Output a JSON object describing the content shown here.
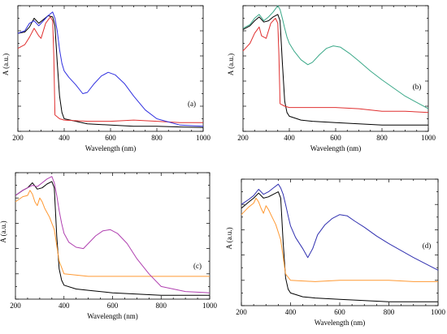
{
  "chart_data": [
    {
      "type": "line",
      "panel_label": "(a)",
      "xlabel": "Wavelength (nm)",
      "ylabel": "A (a.u.)",
      "xlim": [
        200,
        1000
      ],
      "xticks": [
        200,
        400,
        600,
        800,
        1000
      ],
      "ylim": [
        0,
        1
      ],
      "y_tick_labels_shown": false,
      "grid": false,
      "series": [
        {
          "color": "#000000",
          "x": [
            200,
            230,
            250,
            270,
            290,
            310,
            330,
            350,
            360,
            370,
            380,
            390,
            400,
            450,
            500,
            600,
            700,
            800,
            900,
            1000
          ],
          "y": [
            0.78,
            0.79,
            0.83,
            0.9,
            0.86,
            0.89,
            0.92,
            0.91,
            0.84,
            0.55,
            0.28,
            0.15,
            0.1,
            0.08,
            0.06,
            0.05,
            0.04,
            0.04,
            0.035,
            0.03
          ]
        },
        {
          "color": "#e03030",
          "x": [
            200,
            230,
            250,
            270,
            290,
            300,
            320,
            340,
            350,
            355,
            360,
            380,
            400,
            500,
            600,
            700,
            800,
            900,
            1000
          ],
          "y": [
            0.66,
            0.69,
            0.75,
            0.82,
            0.76,
            0.74,
            0.86,
            0.91,
            0.88,
            0.6,
            0.13,
            0.1,
            0.09,
            0.08,
            0.08,
            0.09,
            0.08,
            0.07,
            0.07
          ]
        },
        {
          "color": "#3030e0",
          "x": [
            200,
            230,
            250,
            270,
            290,
            310,
            330,
            350,
            360,
            370,
            380,
            390,
            400,
            420,
            450,
            480,
            500,
            530,
            560,
            590,
            620,
            660,
            700,
            750,
            800,
            900,
            1000
          ],
          "y": [
            0.78,
            0.8,
            0.86,
            0.88,
            0.84,
            0.88,
            0.92,
            0.95,
            0.9,
            0.8,
            0.65,
            0.54,
            0.48,
            0.43,
            0.37,
            0.3,
            0.31,
            0.38,
            0.44,
            0.47,
            0.45,
            0.38,
            0.28,
            0.17,
            0.1,
            0.05,
            0.04
          ]
        }
      ]
    },
    {
      "type": "line",
      "panel_label": "(b)",
      "xlabel": "Wavelength (nm)",
      "ylabel": "A (a.u.)",
      "xlim": [
        200,
        1000
      ],
      "xticks": [
        200,
        400,
        600,
        800,
        1000
      ],
      "ylim": [
        0,
        1
      ],
      "y_tick_labels_shown": false,
      "grid": false,
      "series": [
        {
          "color": "#000000",
          "x": [
            200,
            230,
            250,
            270,
            290,
            310,
            330,
            350,
            360,
            370,
            380,
            390,
            400,
            450,
            500,
            600,
            700,
            800,
            900,
            1000
          ],
          "y": [
            0.81,
            0.84,
            0.88,
            0.91,
            0.87,
            0.88,
            0.91,
            0.93,
            0.88,
            0.55,
            0.24,
            0.15,
            0.12,
            0.09,
            0.08,
            0.07,
            0.06,
            0.05,
            0.05,
            0.05
          ]
        },
        {
          "color": "#e03030",
          "x": [
            200,
            230,
            250,
            270,
            280,
            300,
            320,
            340,
            350,
            355,
            360,
            380,
            400,
            500,
            600,
            700,
            800,
            900,
            1000
          ],
          "y": [
            0.64,
            0.7,
            0.78,
            0.83,
            0.76,
            0.74,
            0.86,
            0.9,
            0.86,
            0.6,
            0.22,
            0.2,
            0.19,
            0.19,
            0.19,
            0.18,
            0.16,
            0.16,
            0.15
          ]
        },
        {
          "color": "#3aa888",
          "x": [
            200,
            230,
            250,
            270,
            290,
            310,
            330,
            350,
            360,
            370,
            380,
            390,
            400,
            420,
            450,
            480,
            500,
            530,
            560,
            590,
            620,
            660,
            700,
            750,
            800,
            900,
            1000
          ],
          "y": [
            0.82,
            0.85,
            0.9,
            0.93,
            0.88,
            0.91,
            0.95,
            1.0,
            0.97,
            0.9,
            0.82,
            0.75,
            0.7,
            0.64,
            0.57,
            0.53,
            0.55,
            0.61,
            0.66,
            0.68,
            0.67,
            0.62,
            0.56,
            0.48,
            0.41,
            0.28,
            0.18
          ]
        }
      ]
    },
    {
      "type": "line",
      "panel_label": "(c)",
      "xlabel": "Wavelength (nm)",
      "ylabel": "A (a.u.)",
      "xlim": [
        200,
        1000
      ],
      "xticks": [
        200,
        400,
        600,
        800,
        1000
      ],
      "ylim": [
        0,
        1
      ],
      "y_tick_labels_shown": false,
      "grid": false,
      "series": [
        {
          "color": "#000000",
          "x": [
            200,
            230,
            250,
            270,
            290,
            310,
            330,
            350,
            360,
            370,
            380,
            390,
            400,
            450,
            500,
            600,
            700,
            800,
            900,
            1000
          ],
          "y": [
            0.82,
            0.86,
            0.88,
            0.92,
            0.87,
            0.88,
            0.91,
            0.93,
            0.88,
            0.5,
            0.24,
            0.15,
            0.11,
            0.08,
            0.07,
            0.05,
            0.04,
            0.03,
            0.03,
            0.03
          ]
        },
        {
          "color": "#ff9933",
          "x": [
            200,
            230,
            250,
            260,
            270,
            280,
            290,
            300,
            310,
            320,
            340,
            360,
            380,
            400,
            500,
            600,
            700,
            800,
            900,
            1000
          ],
          "y": [
            0.77,
            0.81,
            0.82,
            0.86,
            0.83,
            0.77,
            0.74,
            0.8,
            0.77,
            0.72,
            0.65,
            0.55,
            0.3,
            0.2,
            0.18,
            0.18,
            0.18,
            0.18,
            0.18,
            0.18
          ]
        },
        {
          "color": "#b040b0",
          "x": [
            200,
            230,
            250,
            270,
            290,
            310,
            330,
            350,
            360,
            370,
            380,
            390,
            400,
            420,
            450,
            480,
            500,
            530,
            560,
            590,
            620,
            660,
            700,
            750,
            800,
            900,
            1000
          ],
          "y": [
            0.82,
            0.86,
            0.88,
            0.9,
            0.89,
            0.92,
            0.95,
            0.97,
            0.92,
            0.82,
            0.7,
            0.6,
            0.52,
            0.45,
            0.41,
            0.4,
            0.44,
            0.5,
            0.54,
            0.55,
            0.52,
            0.44,
            0.32,
            0.2,
            0.1,
            0.06,
            0.05
          ]
        }
      ]
    },
    {
      "type": "line",
      "panel_label": "(d)",
      "xlabel": "Wavelength (nm)",
      "ylabel": "A (a.u.)",
      "xlim": [
        200,
        1000
      ],
      "xticks": [
        200,
        400,
        600,
        800,
        1000
      ],
      "ylim": [
        0,
        1
      ],
      "y_tick_labels_shown": false,
      "grid": false,
      "series": [
        {
          "color": "#000000",
          "x": [
            200,
            230,
            250,
            270,
            290,
            310,
            330,
            350,
            360,
            370,
            380,
            390,
            400,
            450,
            500,
            600,
            700,
            800,
            900,
            1000
          ],
          "y": [
            0.77,
            0.82,
            0.85,
            0.89,
            0.85,
            0.86,
            0.88,
            0.9,
            0.85,
            0.5,
            0.22,
            0.13,
            0.1,
            0.07,
            0.06,
            0.05,
            0.04,
            0.03,
            0.03,
            0.03
          ]
        },
        {
          "color": "#ff9933",
          "x": [
            200,
            230,
            250,
            260,
            270,
            280,
            290,
            300,
            310,
            320,
            340,
            360,
            380,
            400,
            500,
            600,
            700,
            800,
            900,
            1000
          ],
          "y": [
            0.72,
            0.78,
            0.81,
            0.85,
            0.82,
            0.77,
            0.73,
            0.79,
            0.76,
            0.72,
            0.64,
            0.52,
            0.25,
            0.2,
            0.19,
            0.2,
            0.2,
            0.2,
            0.19,
            0.19
          ]
        },
        {
          "color": "#3030b0",
          "x": [
            200,
            230,
            250,
            270,
            290,
            310,
            330,
            350,
            360,
            370,
            380,
            390,
            400,
            420,
            450,
            470,
            490,
            510,
            540,
            570,
            600,
            630,
            660,
            700,
            750,
            800,
            900,
            1000
          ],
          "y": [
            0.8,
            0.84,
            0.87,
            0.92,
            0.88,
            0.9,
            0.93,
            0.96,
            0.93,
            0.88,
            0.8,
            0.71,
            0.63,
            0.54,
            0.45,
            0.38,
            0.45,
            0.56,
            0.64,
            0.69,
            0.72,
            0.71,
            0.67,
            0.62,
            0.55,
            0.49,
            0.38,
            0.28
          ]
        }
      ]
    }
  ]
}
